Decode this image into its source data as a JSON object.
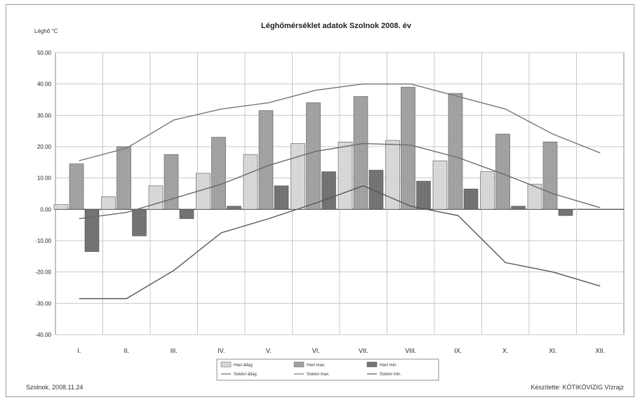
{
  "chart_data": {
    "type": "bar",
    "title": "Léghőmérséklet adatok Szolnok 2008. év",
    "ylabel": "Léghő °C",
    "xlabel": "",
    "ylim": [
      -40,
      50
    ],
    "ytick_step": 10,
    "ytick_labels": [
      "50.00",
      "40.00",
      "30.00",
      "20.00",
      "10.00",
      "0.00",
      "-10.00",
      "-20.00",
      "-30.00",
      "-40.00"
    ],
    "grid": true,
    "legend_position": "bottom",
    "categories": [
      "I.",
      "II.",
      "III.",
      "IV.",
      "V.",
      "VI.",
      "VII.",
      "VIII.",
      "IX.",
      "X.",
      "XI.",
      "XII."
    ],
    "bar_series": [
      {
        "name": "Havi átlag",
        "color": "#d2d2d2",
        "values": [
          1.5,
          4,
          7.5,
          11.5,
          17.5,
          21,
          21.5,
          22,
          15.5,
          12,
          8,
          null
        ]
      },
      {
        "name": "Havi max.",
        "color": "#9b9b9b",
        "values": [
          14.5,
          20,
          17.5,
          23,
          31.5,
          34,
          36,
          39,
          37,
          24,
          21.5,
          null
        ]
      },
      {
        "name": "Havi min.",
        "color": "#6f6f6f",
        "values": [
          -13.5,
          -8.5,
          -3,
          1,
          7.5,
          12,
          12.5,
          9,
          6.5,
          1,
          -2,
          null
        ]
      }
    ],
    "line_series": [
      {
        "name": "Sokévi átlag",
        "color": "#6a6a6a",
        "values": [
          -3,
          -1,
          3.5,
          8,
          14,
          18.5,
          21,
          20.5,
          16.5,
          11,
          5,
          0.5
        ]
      },
      {
        "name": "Sokévi max.",
        "color": "#777777",
        "values": [
          15.5,
          19.5,
          28.5,
          32,
          34,
          38,
          40,
          40,
          36,
          32,
          24,
          18
        ]
      },
      {
        "name": "Sokévi min.",
        "color": "#555555",
        "values": [
          -28.5,
          -28.5,
          -19.5,
          -7.5,
          -3,
          2,
          7.5,
          1,
          -2,
          -17,
          -20,
          -24.5
        ]
      }
    ]
  },
  "footer": {
    "left": "Szolnok, 2008.11.24",
    "right": "Készítette: KÖTIKÖVIZIG VIzrajz"
  }
}
